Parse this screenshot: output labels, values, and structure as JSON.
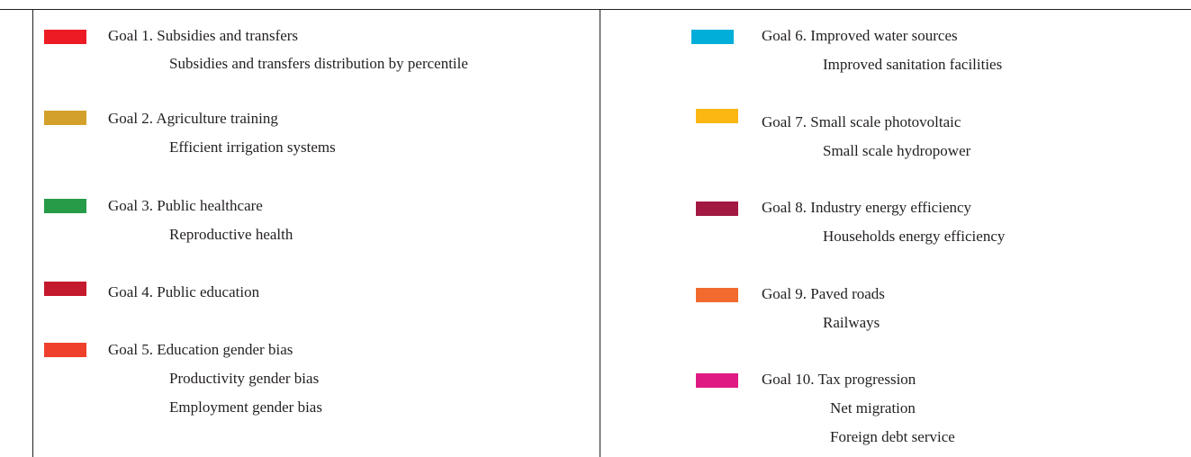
{
  "goals": [
    {
      "label": "Goal 1. Subsidies and transfers",
      "subs": [
        "Subsidies and transfers distribution by percentile"
      ],
      "color": "#ed1c24"
    },
    {
      "label": "Goal 2. Agriculture training",
      "subs": [
        "Efficient irrigation systems"
      ],
      "color": "#d3a029"
    },
    {
      "label": "Goal 3. Public healthcare",
      "subs": [
        "Reproductive health"
      ],
      "color": "#279b48"
    },
    {
      "label": "Goal 4. Public education",
      "subs": [],
      "color": "#c5192d"
    },
    {
      "label": "Goal 5. Education gender bias",
      "subs": [
        "Productivity gender bias",
        "Employment gender bias"
      ],
      "color": "#ef402b"
    },
    {
      "label": "Goal 6. Improved water sources",
      "subs": [
        "Improved sanitation facilities"
      ],
      "color": "#00aed9"
    },
    {
      "label": "Goal 7. Small scale photovoltaic",
      "subs": [
        "Small scale hydropower"
      ],
      "color": "#fdb713"
    },
    {
      "label": "Goal 8. Industry energy efficiency",
      "subs": [
        "Households energy efficiency"
      ],
      "color": "#a21942"
    },
    {
      "label": "Goal 9. Paved roads",
      "subs": [
        "Railways"
      ],
      "color": "#f26a2d"
    },
    {
      "label": "Goal 10. Tax progression",
      "subs": [
        "Net migration",
        "Foreign debt service"
      ],
      "color": "#e01a83"
    }
  ]
}
